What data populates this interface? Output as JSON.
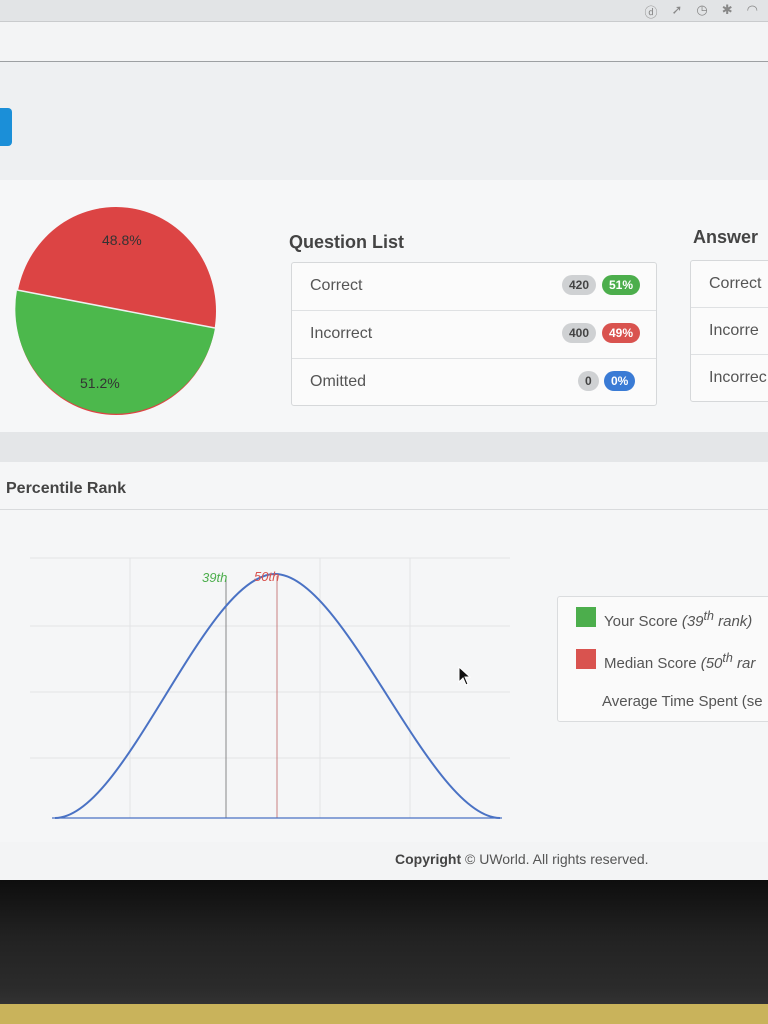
{
  "pie": {
    "incorrect_pct_label": "48.8%",
    "correct_pct_label": "51.2%",
    "colors": {
      "correct": "#4cb84c",
      "incorrect": "#dc4444"
    }
  },
  "question_list": {
    "title": "Question List",
    "rows": [
      {
        "label": "Correct",
        "count": "420",
        "pct": "51%",
        "pct_color": "green"
      },
      {
        "label": "Incorrect",
        "count": "400",
        "pct": "49%",
        "pct_color": "red"
      },
      {
        "label": "Omitted",
        "count": "0",
        "pct": "0%",
        "pct_color": "blue"
      }
    ]
  },
  "answer_changes": {
    "title": "Answer",
    "rows": [
      "Correct",
      "Incorre",
      "Incorrec"
    ]
  },
  "percentile": {
    "title": "Percentile Rank",
    "your_marker": "39th",
    "median_marker": "50th",
    "legend": {
      "your_score_prefix": "Your Score ",
      "your_score_italic": "(39",
      "your_score_sup": "th",
      "your_score_tail": " rank)",
      "median_prefix": "Median Score ",
      "median_italic": "(50",
      "median_sup": "th",
      "median_tail": " rar",
      "avg_time": "Average Time Spent (se"
    },
    "colors": {
      "your_score": "#4cae4c",
      "median": "#d9534f",
      "curve": "#4a72c4"
    }
  },
  "footer": {
    "copyright_bold": "Copyright",
    "copyright_rest": " © UWorld. All rights reserved."
  }
}
